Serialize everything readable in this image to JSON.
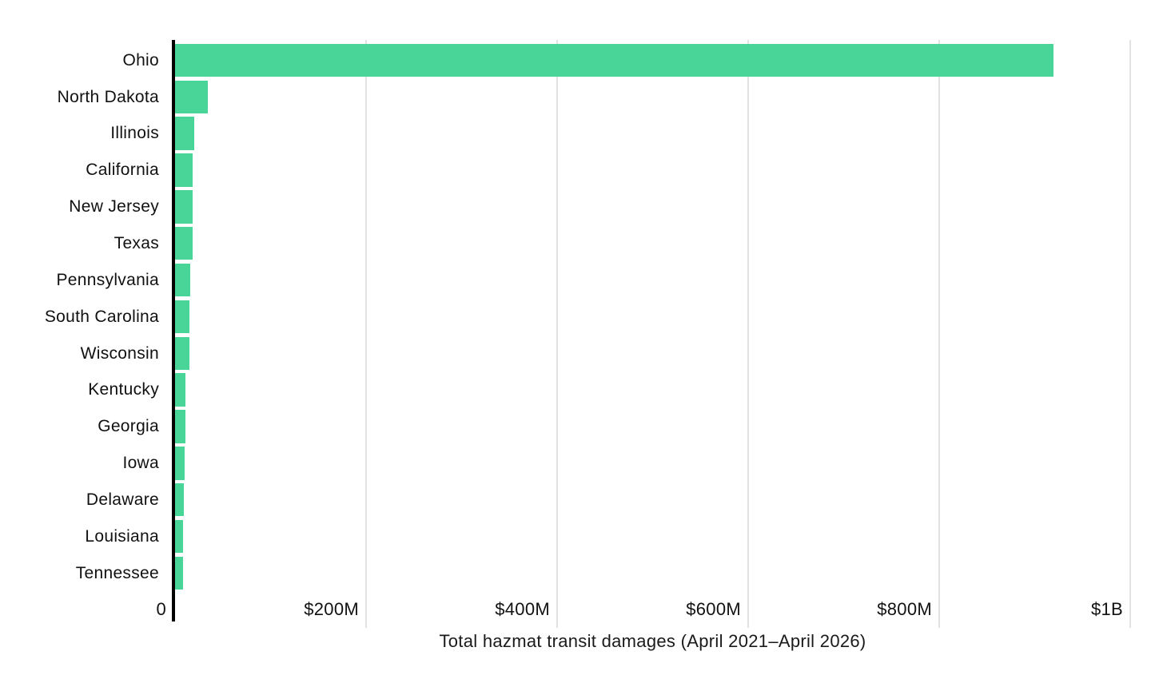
{
  "chart_data": {
    "type": "bar",
    "orientation": "horizontal",
    "title": "",
    "xlabel": "Total hazmat transit damages (April 2021–April 2026)",
    "ylabel": "",
    "categories": [
      "Ohio",
      "North Dakota",
      "Illinois",
      "California",
      "New Jersey",
      "Texas",
      "Pennsylvania",
      "South Carolina",
      "Wisconsin",
      "Kentucky",
      "Georgia",
      "Iowa",
      "Delaware",
      "Louisiana",
      "Tennessee"
    ],
    "values": [
      920,
      34,
      20,
      18.5,
      18.5,
      18,
      16,
      15,
      15,
      11,
      10.5,
      10,
      9.5,
      8.5,
      8
    ],
    "values_unit": "USD millions",
    "xlim": [
      0,
      1000
    ],
    "x_ticks": [
      {
        "value": 0,
        "label": "0"
      },
      {
        "value": 200,
        "label": "$200M"
      },
      {
        "value": 400,
        "label": "$400M"
      },
      {
        "value": 600,
        "label": "$600M"
      },
      {
        "value": 800,
        "label": "$800M"
      },
      {
        "value": 1000,
        "label": "$1B"
      }
    ],
    "grid": "vertical",
    "legend": "none",
    "colors": {
      "bar": "#48d597",
      "gridline": "#e2e2e2",
      "axis_line": "#000000",
      "label_text": "#111111",
      "title_text": "#1a1a1a",
      "background": "#ffffff"
    }
  }
}
